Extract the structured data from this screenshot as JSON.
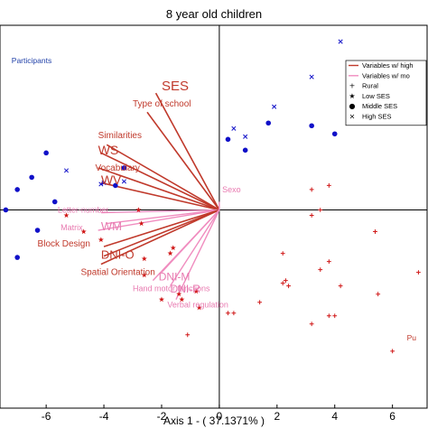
{
  "chart_data": {
    "type": "scatter",
    "title": "8 year old children",
    "xlabel": "Axis 1 - ( 37.1371% )",
    "ylabel": "",
    "xlim": [
      -7.6,
      7.2
    ],
    "ylim": [
      -7.3,
      6.8
    ],
    "x_ticks": [
      -6,
      -4,
      -2,
      0,
      2,
      4,
      6
    ],
    "x_tick_labels": [
      "-6",
      "-4",
      "-2",
      "0",
      "2",
      "4",
      "6"
    ],
    "grid": false,
    "legend_position": "top-right",
    "legend": [
      {
        "label": "Variables w/ high",
        "kind": "line",
        "color": "#c0392b"
      },
      {
        "label": "Variables w/ mo",
        "kind": "line",
        "color": "#f08cbf"
      },
      {
        "label": "Rural",
        "kind": "marker",
        "marker": "+"
      },
      {
        "label": "Low SES",
        "kind": "marker",
        "marker": "★"
      },
      {
        "label": "Middle SES",
        "kind": "marker",
        "marker": "●"
      },
      {
        "label": "High SES",
        "kind": "marker",
        "marker": "×"
      }
    ],
    "group_labels": [
      {
        "text": "Participants",
        "x": -7.2,
        "y": 5.4,
        "color": "#1f3fa8"
      },
      {
        "text": "Pu",
        "x": 6.5,
        "y": -4.8,
        "color": "#c0392b"
      }
    ],
    "vectors": [
      {
        "label": "SES",
        "x": -2.2,
        "y": 4.3,
        "group": "high",
        "lx": -2.0,
        "ly": 4.4,
        "size": 15
      },
      {
        "label": "Type of school",
        "x": -2.5,
        "y": 3.6,
        "group": "high",
        "lx": -3.0,
        "ly": 3.8,
        "size": 10
      },
      {
        "label": "Similarities",
        "x": -3.9,
        "y": 2.4,
        "group": "high",
        "lx": -4.2,
        "ly": 2.65,
        "size": 10
      },
      {
        "label": "WS",
        "x": -4.1,
        "y": 2.1,
        "group": "high",
        "lx": -4.2,
        "ly": 2.05,
        "size": 14
      },
      {
        "label": "Vocabulary",
        "x": -4.2,
        "y": 1.55,
        "group": "high",
        "lx": -4.3,
        "ly": 1.45,
        "size": 10
      },
      {
        "label": "WV",
        "x": -4.1,
        "y": 1.0,
        "group": "high",
        "lx": -4.1,
        "ly": 0.95,
        "size": 14
      },
      {
        "label": "Letter-number",
        "x": -4.1,
        "y": -0.1,
        "group": "moderate",
        "lx": -5.6,
        "ly": -0.1,
        "size": 9
      },
      {
        "label": "Matrix",
        "x": -4.2,
        "y": -0.75,
        "group": "moderate",
        "lx": -5.5,
        "ly": -0.75,
        "size": 9
      },
      {
        "label": "WM",
        "x": -3.9,
        "y": -0.5,
        "group": "moderate",
        "lx": -4.1,
        "ly": -0.75,
        "size": 13
      },
      {
        "label": "Block Design",
        "x": -4.0,
        "y": -1.35,
        "group": "high",
        "lx": -6.3,
        "ly": -1.35,
        "size": 10
      },
      {
        "label": "DNI-O",
        "x": -4.0,
        "y": -1.7,
        "group": "high",
        "lx": -4.1,
        "ly": -1.8,
        "size": 13
      },
      {
        "label": "Spatial Orientation",
        "x": -4.1,
        "y": -2.0,
        "group": "high",
        "lx": -4.8,
        "ly": -2.4,
        "size": 10
      },
      {
        "label": "DNI-M",
        "x": -2.0,
        "y": -2.3,
        "group": "moderate",
        "lx": -2.1,
        "ly": -2.6,
        "size": 12
      },
      {
        "label": "DNI-R",
        "x": -1.7,
        "y": -2.8,
        "group": "moderate",
        "lx": -1.7,
        "ly": -3.05,
        "size": 12
      },
      {
        "label": "Hand motor functions",
        "x": -2.3,
        "y": -2.6,
        "group": "moderate",
        "lx": -3.0,
        "ly": -3.0,
        "size": 9
      },
      {
        "label": "Verbal regulation",
        "x": -1.5,
        "y": -3.3,
        "group": "moderate",
        "lx": -1.8,
        "ly": -3.6,
        "size": 9
      },
      {
        "label": "Sexo",
        "x": 0.0,
        "y": 0.3,
        "group": "moderate",
        "lx": 0.1,
        "ly": 0.65,
        "size": 9
      }
    ],
    "series": [
      {
        "name": "Middle SES",
        "marker": "dot",
        "color": "#1010c8",
        "points": [
          [
            -6.0,
            2.1
          ],
          [
            -7.0,
            0.75
          ],
          [
            -6.5,
            1.2
          ],
          [
            -7.4,
            0.0
          ],
          [
            -6.3,
            -0.75
          ],
          [
            -7.0,
            -1.75
          ],
          [
            -5.7,
            0.3
          ],
          [
            -3.6,
            0.9
          ],
          [
            -3.3,
            1.55
          ],
          [
            0.3,
            2.6
          ],
          [
            0.9,
            2.2
          ],
          [
            1.7,
            3.2
          ],
          [
            3.2,
            3.1
          ],
          [
            4.0,
            2.8
          ]
        ]
      },
      {
        "name": "High SES",
        "marker": "x",
        "color": "#1010c8",
        "points": [
          [
            -5.3,
            1.45
          ],
          [
            -4.1,
            0.95
          ],
          [
            -3.3,
            1.05
          ],
          [
            -4.0,
            1.0
          ],
          [
            0.5,
            3.0
          ],
          [
            1.9,
            3.8
          ],
          [
            3.2,
            4.9
          ],
          [
            4.2,
            6.2
          ],
          [
            4.9,
            4.9
          ],
          [
            0.9,
            2.7
          ]
        ]
      },
      {
        "name": "Low SES",
        "marker": "star",
        "color": "#d01818",
        "points": [
          [
            -5.3,
            -0.2
          ],
          [
            -4.7,
            -0.8
          ],
          [
            -4.1,
            -1.1
          ],
          [
            -2.6,
            -1.8
          ],
          [
            -2.7,
            -0.5
          ],
          [
            -2.8,
            0.0
          ],
          [
            -1.7,
            -1.6
          ],
          [
            -1.6,
            -1.4
          ],
          [
            -2.6,
            -2.4
          ],
          [
            -1.4,
            -3.1
          ],
          [
            -1.3,
            -3.3
          ],
          [
            -0.8,
            -3.0
          ],
          [
            -0.7,
            -3.6
          ],
          [
            -2.0,
            -3.3
          ]
        ]
      },
      {
        "name": "Rural",
        "marker": "plus",
        "color": "#d01818",
        "points": [
          [
            -1.1,
            -4.6
          ],
          [
            3.2,
            -0.2
          ],
          [
            3.2,
            0.75
          ],
          [
            3.5,
            0.0
          ],
          [
            3.8,
            0.9
          ],
          [
            5.4,
            -0.8
          ],
          [
            2.2,
            -1.6
          ],
          [
            2.2,
            -2.7
          ],
          [
            2.3,
            -2.6
          ],
          [
            2.4,
            -2.8
          ],
          [
            3.5,
            -2.2
          ],
          [
            3.8,
            -1.9
          ],
          [
            4.2,
            -2.8
          ],
          [
            5.5,
            -3.1
          ],
          [
            6.9,
            -2.3
          ],
          [
            1.4,
            -3.4
          ],
          [
            0.3,
            -3.8
          ],
          [
            0.5,
            -3.8
          ],
          [
            3.2,
            -4.2
          ],
          [
            6.0,
            -5.2
          ],
          [
            4.0,
            -3.9
          ],
          [
            3.8,
            -3.9
          ]
        ]
      }
    ]
  }
}
